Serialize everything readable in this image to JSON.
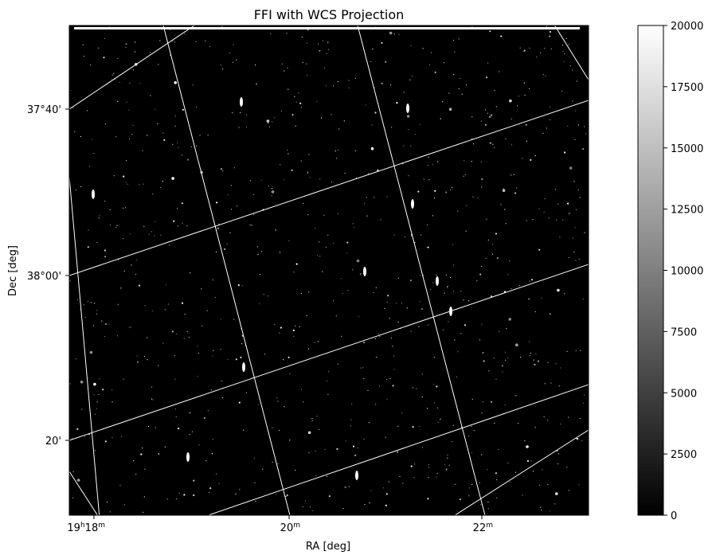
{
  "chart_data": {
    "type": "heatmap",
    "title": "FFI with WCS Projection",
    "xlabel": "RA [deg]",
    "ylabel": "Dec [deg]",
    "colormap": "gray",
    "colorbar": {
      "range": [
        0,
        20000
      ],
      "ticks": [
        0,
        2500,
        5000,
        7500,
        10000,
        12500,
        15000,
        17500,
        20000
      ],
      "tick_labels": [
        "0",
        "2500",
        "5000",
        "7500",
        "10000",
        "12500",
        "15000",
        "17500",
        "20000"
      ]
    },
    "x_ticks": [
      {
        "h": "19",
        "hs": "h",
        "m": "18",
        "ms": "m"
      },
      {
        "h": "",
        "hs": "",
        "m": "20",
        "ms": "m"
      },
      {
        "h": "",
        "hs": "",
        "m": "22",
        "ms": "m"
      }
    ],
    "y_ticks": [
      "37°40'",
      "38°00'",
      "20'"
    ],
    "grid": true,
    "grid_color": "#ffffff",
    "background_color": "#000000",
    "content": "star field with sparse bright point sources"
  }
}
